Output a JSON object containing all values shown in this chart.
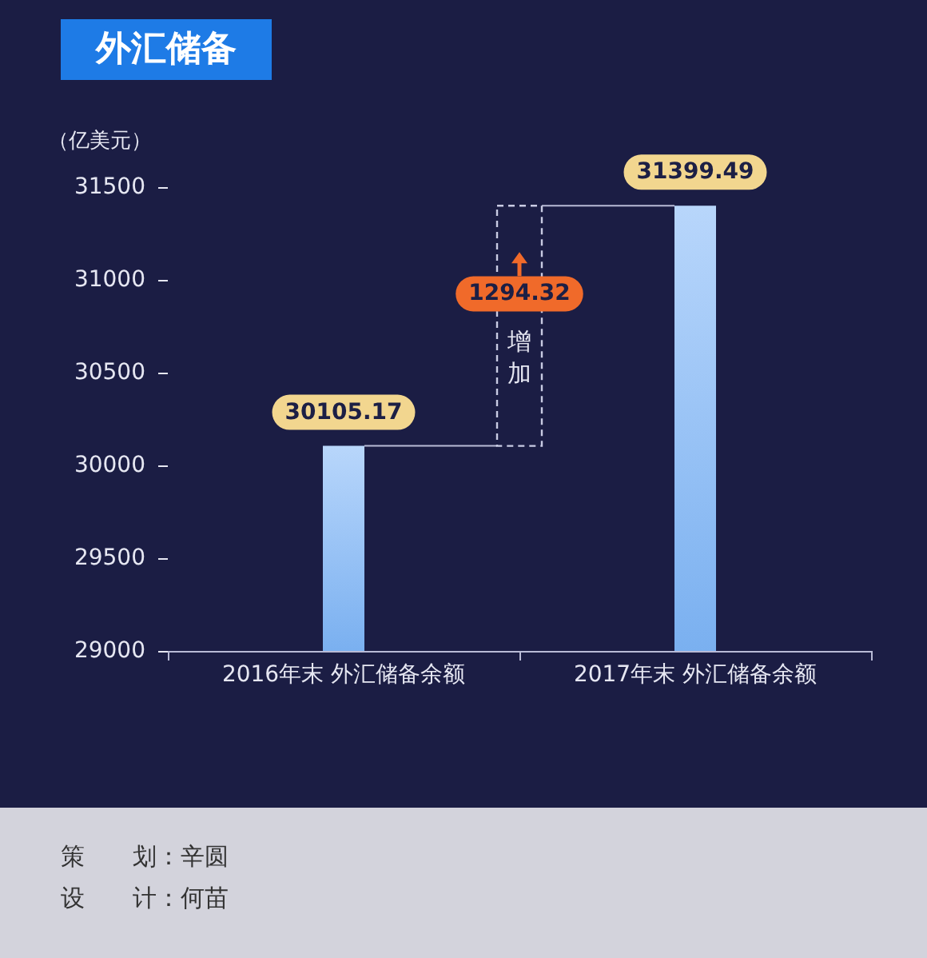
{
  "chart_data": {
    "type": "bar",
    "title": "外汇储备",
    "ylabel": "（亿美元）",
    "categories": [
      "2016年末 外汇储备余额",
      "2017年末 外汇储备余额"
    ],
    "values": [
      30105.17,
      31399.49
    ],
    "color": "#7ab0f0",
    "ylim": [
      29000,
      31500
    ],
    "yticks": [
      29000,
      29500,
      30000,
      30500,
      31000,
      31500
    ],
    "data_labels": true,
    "grid": false,
    "annotations": [
      "1294.32",
      "增加",
      "策　　划：辛圆",
      "设　　计：何苗"
    ]
  }
}
